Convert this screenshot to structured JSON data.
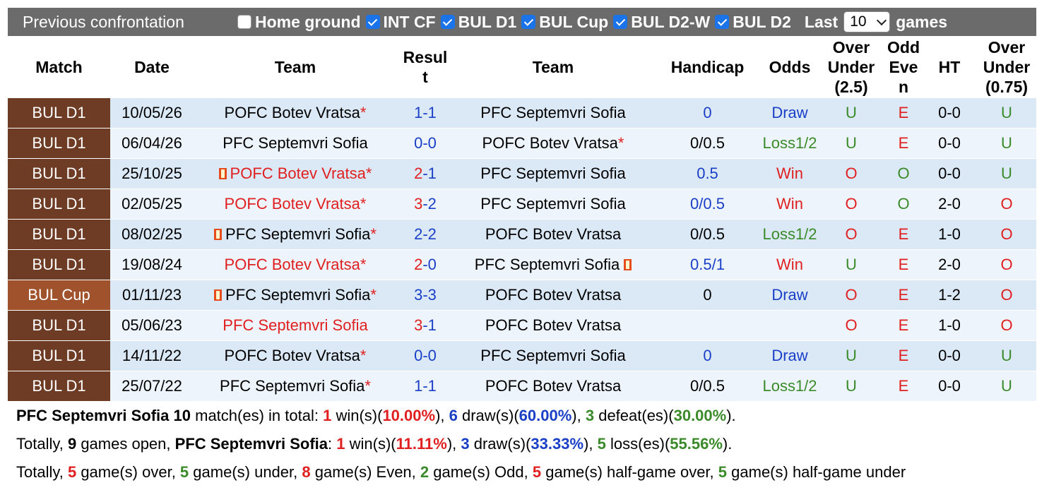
{
  "header": {
    "title": "Previous confrontation",
    "filters": [
      {
        "label": "Home ground",
        "checked": false
      },
      {
        "label": "INT CF",
        "checked": true
      },
      {
        "label": "BUL D1",
        "checked": true
      },
      {
        "label": "BUL Cup",
        "checked": true
      },
      {
        "label": "BUL D2-W",
        "checked": true
      },
      {
        "label": "BUL D2",
        "checked": true
      }
    ],
    "last_label": "Last",
    "games_count": "10",
    "games_label": "games"
  },
  "table": {
    "columns": [
      "Match",
      "Date",
      "Team",
      "Result",
      "Team",
      "Handicap",
      "Odds",
      "Over Under (2.5)",
      "Odd Even",
      "HT",
      "Over Under (0.75)"
    ],
    "column_display": [
      "Match",
      "Date",
      "Team",
      "Resul\nt",
      "Team",
      "Handicap",
      "Odds",
      "Over\nUnder\n(2.5)",
      "Odd\nEve\nn",
      "HT",
      "Over\nUnder\n(0.75)"
    ],
    "rows": [
      {
        "match": "BUL D1",
        "date": "10/05/26",
        "home": "POFC Botev Vratsa",
        "home_star": "*",
        "home_flag": false,
        "home_red": false,
        "score_home": "1",
        "score_away": "1",
        "away": "PFC Septemvri Sofia",
        "away_star": "",
        "away_flag": false,
        "handicap": "0",
        "odds": "Draw",
        "ou": "U",
        "oe": "E",
        "ht": "0-0",
        "ou2": "U"
      },
      {
        "match": "BUL D1",
        "date": "06/04/26",
        "home": "PFC Septemvri Sofia",
        "home_star": "",
        "home_flag": false,
        "home_red": false,
        "score_home": "0",
        "score_away": "0",
        "away": "POFC Botev Vratsa",
        "away_star": "*",
        "away_flag": false,
        "handicap": "0/0.5",
        "odds": "Loss1/2",
        "ou": "U",
        "oe": "E",
        "ht": "0-0",
        "ou2": "U"
      },
      {
        "match": "BUL D1",
        "date": "25/10/25",
        "home": "POFC Botev Vratsa",
        "home_star": "*",
        "home_flag": true,
        "home_red": true,
        "score_home": "2",
        "score_away": "1",
        "away": "PFC Septemvri Sofia",
        "away_star": "",
        "away_flag": false,
        "handicap": "0.5",
        "odds": "Win",
        "ou": "O",
        "oe": "O",
        "ht": "0-0",
        "ou2": "U"
      },
      {
        "match": "BUL D1",
        "date": "02/05/25",
        "home": "POFC Botev Vratsa",
        "home_star": "*",
        "home_flag": false,
        "home_red": true,
        "score_home": "3",
        "score_away": "2",
        "away": "PFC Septemvri Sofia",
        "away_star": "",
        "away_flag": false,
        "handicap": "0/0.5",
        "odds": "Win",
        "ou": "O",
        "oe": "O",
        "ht": "2-0",
        "ou2": "O"
      },
      {
        "match": "BUL D1",
        "date": "08/02/25",
        "home": "PFC Septemvri Sofia",
        "home_star": "*",
        "home_flag": true,
        "home_red": false,
        "score_home": "2",
        "score_away": "2",
        "away": "POFC Botev Vratsa",
        "away_star": "",
        "away_flag": false,
        "handicap": "0/0.5",
        "odds": "Loss1/2",
        "ou": "O",
        "oe": "E",
        "ht": "1-0",
        "ou2": "O"
      },
      {
        "match": "BUL D1",
        "date": "19/08/24",
        "home": "POFC Botev Vratsa",
        "home_star": "*",
        "home_flag": false,
        "home_red": true,
        "score_home": "2",
        "score_away": "0",
        "away": "PFC Septemvri Sofia",
        "away_star": "",
        "away_flag": true,
        "handicap": "0.5/1",
        "odds": "Win",
        "ou": "U",
        "oe": "E",
        "ht": "2-0",
        "ou2": "O"
      },
      {
        "match": "BUL Cup",
        "date": "01/11/23",
        "home": "PFC Septemvri Sofia",
        "home_star": "*",
        "home_flag": true,
        "home_red": false,
        "score_home": "3",
        "score_away": "3",
        "away": "POFC Botev Vratsa",
        "away_star": "",
        "away_flag": false,
        "handicap": "0",
        "odds": "Draw",
        "ou": "O",
        "oe": "E",
        "ht": "1-2",
        "ou2": "O"
      },
      {
        "match": "BUL D1",
        "date": "05/06/23",
        "home": "PFC Septemvri Sofia",
        "home_star": "",
        "home_flag": false,
        "home_red": true,
        "score_home": "3",
        "score_away": "1",
        "away": "POFC Botev Vratsa",
        "away_star": "",
        "away_flag": false,
        "handicap": "",
        "odds": "",
        "ou": "O",
        "oe": "E",
        "ht": "1-0",
        "ou2": "O"
      },
      {
        "match": "BUL D1",
        "date": "14/11/22",
        "home": "POFC Botev Vratsa",
        "home_star": "*",
        "home_flag": false,
        "home_red": false,
        "score_home": "0",
        "score_away": "0",
        "away": "PFC Septemvri Sofia",
        "away_star": "",
        "away_flag": false,
        "handicap": "0",
        "odds": "Draw",
        "ou": "U",
        "oe": "E",
        "ht": "0-0",
        "ou2": "U"
      },
      {
        "match": "BUL D1",
        "date": "25/07/22",
        "home": "PFC Septemvri Sofia",
        "home_star": "*",
        "home_flag": false,
        "home_red": false,
        "score_home": "1",
        "score_away": "1",
        "away": "POFC Botev Vratsa",
        "away_star": "",
        "away_flag": false,
        "handicap": "0/0.5",
        "odds": "Loss1/2",
        "ou": "U",
        "oe": "E",
        "ht": "0-0",
        "ou2": "U"
      }
    ]
  },
  "summary": {
    "line1": {
      "team": "PFC Septemvri Sofia",
      "matches": "10",
      "t1": " match(es) in total: ",
      "wins": "1",
      "t2": " win(s)(",
      "win_pct": "10.00%",
      "t3": "), ",
      "draws": "6",
      "t4": " draw(s)(",
      "draw_pct": "60.00%",
      "t5": "), ",
      "defeats": "3",
      "t6": " defeat(es)(",
      "defeat_pct": "30.00%",
      "t7": ")."
    },
    "line2": {
      "t0": "Totally, ",
      "open": "9",
      "t1": " games open, ",
      "team": "PFC Septemvri Sofia",
      "t2": ": ",
      "wins": "1",
      "t3": " win(s)(",
      "win_pct": "11.11%",
      "t4": "), ",
      "draws": "3",
      "t5": " draw(s)(",
      "draw_pct": "33.33%",
      "t6": "), ",
      "losses": "5",
      "t7": " loss(es)(",
      "loss_pct": "55.56%",
      "t8": ")."
    },
    "line3": {
      "t0": "Totally, ",
      "over": "5",
      "t1": " game(s) over, ",
      "under": "5",
      "t2": " game(s) under, ",
      "even": "8",
      "t3": " game(s) Even, ",
      "odd": "2",
      "t4": " game(s) Odd, ",
      "half_over": "5",
      "t5": " game(s) half-game over, ",
      "half_under": "5",
      "t6": " game(s) half-game under"
    }
  },
  "colors": {
    "header_bg": "#6b6b6b",
    "league_bg": "#6e3b24",
    "cup_bg": "#a0522d",
    "red": "#e02020",
    "blue": "#1a3fc6",
    "green": "#3a8a2a",
    "row_a": "#dbe9f7",
    "row_b": "#edf4fc"
  }
}
